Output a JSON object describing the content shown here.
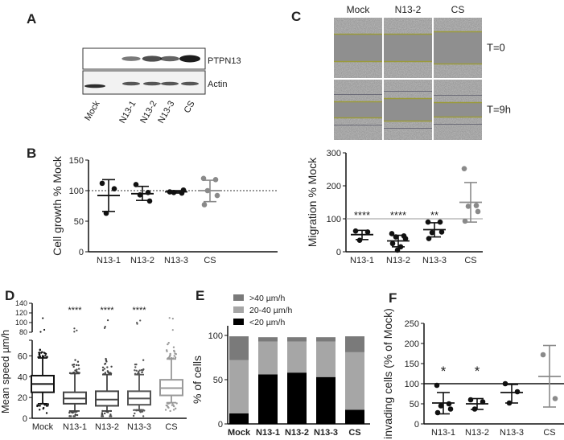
{
  "panels": {
    "A": "A",
    "B": "B",
    "C": "C",
    "D": "D",
    "E": "E",
    "F": "F"
  },
  "blot": {
    "bands": [
      "PTPN13",
      "Actin"
    ],
    "lanes": [
      "Mock",
      "N13-1",
      "N13-2",
      "N13-3",
      "CS"
    ]
  },
  "scratch": {
    "columns": [
      "Mock",
      "N13-2",
      "CS"
    ],
    "rows": [
      "T=0",
      "T=9h"
    ]
  },
  "chart_data": [
    {
      "id": "B",
      "type": "scatter",
      "title": "",
      "xlabel": "",
      "ylabel": "Cell growth % Mock",
      "ylim": [
        0,
        150
      ],
      "yticks": [
        0,
        50,
        100,
        150
      ],
      "reference_line": {
        "value": 100,
        "style": "dotted"
      },
      "categories": [
        "N13-1",
        "N13-2",
        "N13-3",
        "CS"
      ],
      "series": [
        {
          "name": "N13-1",
          "color": "#111111",
          "points": [
            112,
            103,
            63
          ],
          "mean": 92,
          "sd_low": 66,
          "sd_high": 118,
          "significance": ""
        },
        {
          "name": "N13-2",
          "color": "#111111",
          "points": [
            110,
            97,
            93,
            83
          ],
          "mean": 95,
          "sd_low": 84,
          "sd_high": 107,
          "significance": ""
        },
        {
          "name": "N13-3",
          "color": "#111111",
          "points": [
            98,
            96,
            97,
            101
          ],
          "mean": 98,
          "sd_low": 96,
          "sd_high": 100,
          "significance": ""
        },
        {
          "name": "CS",
          "color": "#8a8a8a",
          "points": [
            120,
            118,
            100,
            92,
            77
          ],
          "mean": 100,
          "sd_low": 82,
          "sd_high": 117,
          "significance": ""
        }
      ]
    },
    {
      "id": "C",
      "type": "scatter",
      "title": "",
      "xlabel": "",
      "ylabel": "Migration % Mock",
      "ylim": [
        0,
        300
      ],
      "yticks": [
        0,
        100,
        200,
        300
      ],
      "reference_line": {
        "value": 100,
        "style": "solid-gray"
      },
      "categories": [
        "N13-1",
        "N13-2",
        "N13-3",
        "CS"
      ],
      "series": [
        {
          "name": "N13-1",
          "color": "#111111",
          "points": [
            63,
            60,
            35
          ],
          "mean": 52,
          "sd_low": 37,
          "sd_high": 65,
          "significance": "****"
        },
        {
          "name": "N13-2",
          "color": "#111111",
          "points": [
            55,
            48,
            45,
            40,
            25,
            15,
            5
          ],
          "mean": 33,
          "sd_low": 15,
          "sd_high": 50,
          "significance": "****"
        },
        {
          "name": "N13-3",
          "color": "#111111",
          "points": [
            90,
            90,
            58,
            60,
            40
          ],
          "mean": 67,
          "sd_low": 45,
          "sd_high": 88,
          "significance": "**"
        },
        {
          "name": "CS",
          "color": "#8a8a8a",
          "points": [
            252,
            140,
            138,
            122,
            93
          ],
          "mean": 150,
          "sd_low": 90,
          "sd_high": 210,
          "significance": ""
        }
      ]
    },
    {
      "id": "D",
      "type": "box",
      "ylabel": "Mean speed µm/h",
      "yticks_lower": [
        0,
        20,
        40,
        60
      ],
      "yticks_upper": [
        80,
        100,
        120,
        140
      ],
      "ylim_lower": [
        0,
        75
      ],
      "ylim_upper": [
        80,
        140
      ],
      "categories": [
        "Mock",
        "N13-1",
        "N13-2",
        "N13-3",
        "CS"
      ],
      "series": [
        {
          "name": "Mock",
          "color": "#111111",
          "min": 14,
          "q1": 25,
          "median": 33,
          "q3": 41,
          "max": 58,
          "significance": ""
        },
        {
          "name": "N13-1",
          "color": "#444444",
          "min": 7,
          "q1": 14,
          "median": 19,
          "q3": 25,
          "max": 43,
          "significance": "****"
        },
        {
          "name": "N13-2",
          "color": "#444444",
          "min": 7,
          "q1": 12,
          "median": 18,
          "q3": 26,
          "max": 42,
          "significance": "****"
        },
        {
          "name": "N13-3",
          "color": "#555555",
          "min": 8,
          "q1": 13,
          "median": 19,
          "q3": 26,
          "max": 42,
          "significance": "****"
        },
        {
          "name": "CS",
          "color": "#999999",
          "min": 15,
          "q1": 22,
          "median": 29,
          "q3": 37,
          "max": 57,
          "significance": ""
        }
      ]
    },
    {
      "id": "E",
      "type": "bar",
      "stacked": true,
      "ylabel": "% of cells",
      "ylim": [
        0,
        100
      ],
      "yticks": [
        0,
        50,
        100
      ],
      "legend_position": "top-left",
      "categories": [
        "Mock",
        "N13-1",
        "N13-2",
        "N13-3",
        "CS"
      ],
      "series": [
        {
          "name": "<20 µm/h",
          "color": "#000000",
          "values": [
            12,
            56,
            58,
            53,
            16
          ]
        },
        {
          "name": "20-40 µm/h",
          "color": "#a6a6a6",
          "values": [
            60,
            37,
            35,
            40,
            65
          ]
        },
        {
          "name": ">40 µm/h",
          "color": "#7a7a7a",
          "values": [
            27,
            5,
            5,
            5,
            18
          ]
        }
      ]
    },
    {
      "id": "F",
      "type": "scatter",
      "ylabel": "invading cells (% of Mock)",
      "ylim": [
        0,
        250
      ],
      "yticks": [
        0,
        50,
        100,
        150,
        200,
        250
      ],
      "reference_line": {
        "value": 100,
        "style": "solid"
      },
      "categories": [
        "N13-1",
        "N13-2",
        "N13-3",
        "CS"
      ],
      "series": [
        {
          "name": "N13-1",
          "color": "#111111",
          "points": [
            96,
            50,
            45,
            37,
            28
          ],
          "mean": 52,
          "sd_low": 25,
          "sd_high": 78,
          "significance": "*"
        },
        {
          "name": "N13-2",
          "color": "#111111",
          "points": [
            60,
            55,
            37
          ],
          "mean": 50,
          "sd_low": 36,
          "sd_high": 63,
          "significance": "*"
        },
        {
          "name": "N13-3",
          "color": "#111111",
          "points": [
            100,
            80,
            52
          ],
          "mean": 78,
          "sd_low": 52,
          "sd_high": 98,
          "significance": ""
        },
        {
          "name": "CS",
          "color": "#8a8a8a",
          "points": [
            172,
            63
          ],
          "mean": 118,
          "sd_low": 42,
          "sd_high": 195,
          "significance": ""
        }
      ]
    }
  ]
}
